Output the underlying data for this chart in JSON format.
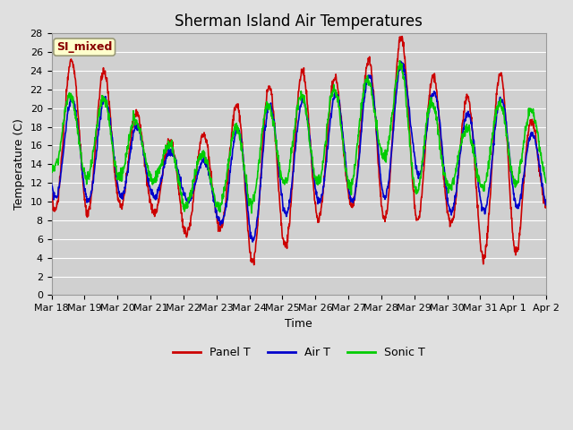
{
  "title": "Sherman Island Air Temperatures",
  "xlabel": "Time",
  "ylabel": "Temperature (C)",
  "ylim": [
    0,
    28
  ],
  "yticks": [
    0,
    2,
    4,
    6,
    8,
    10,
    12,
    14,
    16,
    18,
    20,
    22,
    24,
    26,
    28
  ],
  "x_labels": [
    "Mar 18",
    "Mar 19",
    "Mar 20",
    "Mar 21",
    "Mar 22",
    "Mar 23",
    "Mar 24",
    "Mar 25",
    "Mar 26",
    "Mar 27",
    "Mar 28",
    "Mar 29",
    "Mar 30",
    "Mar 31",
    "Apr 1",
    "Apr 2"
  ],
  "panel_t_color": "#cc0000",
  "air_t_color": "#0000cc",
  "sonic_t_color": "#00cc00",
  "fig_bg_color": "#e0e0e0",
  "plot_bg_color": "#d0d0d0",
  "legend_label": "SI_mixed",
  "legend_box_facecolor": "#ffffcc",
  "legend_text_color": "#880000",
  "line_width": 1.2,
  "title_fontsize": 12,
  "axis_label_fontsize": 9,
  "tick_fontsize": 8,
  "grid_color": "#ffffff",
  "grid_linewidth": 0.8
}
